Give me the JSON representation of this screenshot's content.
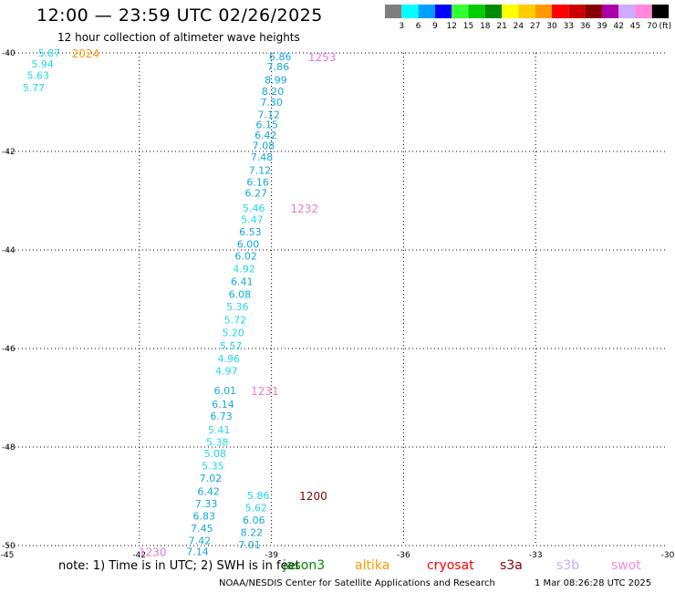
{
  "header": {
    "title": "12:00 — 23:59 UTC 02/26/2025",
    "subtitle": "12 hour collection of altimeter wave heights"
  },
  "color_scale": {
    "unit_label": "(ft)",
    "steps": [
      {
        "label": "3",
        "color": "#7f7f7f"
      },
      {
        "label": "6",
        "color": "#00ffff"
      },
      {
        "label": "9",
        "color": "#00a0ff"
      },
      {
        "label": "12",
        "color": "#0000ff"
      },
      {
        "label": "15",
        "color": "#33ff33"
      },
      {
        "label": "18",
        "color": "#00cc00"
      },
      {
        "label": "21",
        "color": "#008800"
      },
      {
        "label": "24",
        "color": "#ffff00"
      },
      {
        "label": "27",
        "color": "#ffcc00"
      },
      {
        "label": "30",
        "color": "#ff9900"
      },
      {
        "label": "33",
        "color": "#ff0000"
      },
      {
        "label": "36",
        "color": "#cc0000"
      },
      {
        "label": "39",
        "color": "#880000"
      },
      {
        "label": "42",
        "color": "#aa00aa"
      },
      {
        "label": "45",
        "color": "#ccaaff"
      },
      {
        "label": "70",
        "color": "#ff88dd"
      },
      {
        "label": "",
        "color": "#000000"
      }
    ]
  },
  "map": {
    "lon_range": [
      -45,
      -30
    ],
    "lat_range": [
      -50,
      -40
    ],
    "lon_ticks": [
      {
        "value": -45,
        "label": "-45"
      },
      {
        "value": -42,
        "label": "-42"
      },
      {
        "value": -39,
        "label": "-39"
      },
      {
        "value": -36,
        "label": "-36"
      },
      {
        "value": -33,
        "label": "-33"
      },
      {
        "value": -30,
        "label": "-30"
      }
    ],
    "lat_ticks": [
      {
        "value": -40,
        "label": "-40"
      },
      {
        "value": -42,
        "label": "-42"
      },
      {
        "value": -44,
        "label": "-44"
      },
      {
        "value": -46,
        "label": "-46"
      },
      {
        "value": -48,
        "label": "-48"
      },
      {
        "value": -50,
        "label": "-50"
      }
    ],
    "grid": "dotted",
    "colors": {
      "swh_low": "#20d8e8",
      "swh_mid": "#10a8dc"
    },
    "tracks": [
      {
        "name": "track-east",
        "points": [
          {
            "lon": -38.8,
            "lat": -40.07,
            "swh": "6.86"
          },
          {
            "lon": -38.85,
            "lat": -40.28,
            "swh": "7.86"
          },
          {
            "lon": -38.9,
            "lat": -40.55,
            "swh": "8.99"
          },
          {
            "lon": -38.97,
            "lat": -40.78,
            "swh": "8.20"
          },
          {
            "lon": -39.0,
            "lat": -41.0,
            "swh": "7.30"
          },
          {
            "lon": -39.06,
            "lat": -41.25,
            "swh": "7.12"
          },
          {
            "lon": -39.1,
            "lat": -41.45,
            "swh": "6.15"
          },
          {
            "lon": -39.13,
            "lat": -41.67,
            "swh": "6.42"
          },
          {
            "lon": -39.18,
            "lat": -41.88,
            "swh": "7.08"
          },
          {
            "lon": -39.22,
            "lat": -42.11,
            "swh": "7.48"
          },
          {
            "lon": -39.26,
            "lat": -42.38,
            "swh": "7.12"
          },
          {
            "lon": -39.31,
            "lat": -42.62,
            "swh": "6.16"
          },
          {
            "lon": -39.35,
            "lat": -42.84,
            "swh": "6.27"
          },
          {
            "lon": -39.4,
            "lat": -43.15,
            "swh": "5.46"
          },
          {
            "lon": -39.44,
            "lat": -43.38,
            "swh": "5.47"
          },
          {
            "lon": -39.48,
            "lat": -43.63,
            "swh": "6.53"
          },
          {
            "lon": -39.53,
            "lat": -43.88,
            "swh": "6.00"
          },
          {
            "lon": -39.58,
            "lat": -44.12,
            "swh": "6.02"
          },
          {
            "lon": -39.62,
            "lat": -44.38,
            "swh": "4.92"
          },
          {
            "lon": -39.67,
            "lat": -44.64,
            "swh": "6.41"
          },
          {
            "lon": -39.72,
            "lat": -44.9,
            "swh": "6.08"
          },
          {
            "lon": -39.77,
            "lat": -45.15,
            "swh": "5.36"
          },
          {
            "lon": -39.82,
            "lat": -45.42,
            "swh": "5.72"
          },
          {
            "lon": -39.87,
            "lat": -45.68,
            "swh": "5.20"
          },
          {
            "lon": -39.92,
            "lat": -45.94,
            "swh": "5.57"
          },
          {
            "lon": -39.97,
            "lat": -46.2,
            "swh": "4.96"
          },
          {
            "lon": -40.02,
            "lat": -46.45,
            "swh": "4.97"
          }
        ]
      },
      {
        "name": "track-south",
        "points": [
          {
            "lon": -40.05,
            "lat": -46.85,
            "swh": "6.01"
          },
          {
            "lon": -40.1,
            "lat": -47.13,
            "swh": "6.14"
          },
          {
            "lon": -40.14,
            "lat": -47.37,
            "swh": "6.73"
          },
          {
            "lon": -40.19,
            "lat": -47.65,
            "swh": "5.41"
          },
          {
            "lon": -40.23,
            "lat": -47.9,
            "swh": "5.38"
          },
          {
            "lon": -40.28,
            "lat": -48.13,
            "swh": "5.08"
          },
          {
            "lon": -40.33,
            "lat": -48.38,
            "swh": "5.35"
          },
          {
            "lon": -40.38,
            "lat": -48.63,
            "swh": "7.02"
          },
          {
            "lon": -40.43,
            "lat": -48.9,
            "swh": "6.42"
          },
          {
            "lon": -40.48,
            "lat": -49.15,
            "swh": "7.33"
          },
          {
            "lon": -40.53,
            "lat": -49.4,
            "swh": "6.83"
          },
          {
            "lon": -40.58,
            "lat": -49.65,
            "swh": "7.45"
          },
          {
            "lon": -40.63,
            "lat": -49.9,
            "swh": "7.42"
          },
          {
            "lon": -40.68,
            "lat": -50.12,
            "swh": "7.14"
          }
        ]
      },
      {
        "name": "track-short",
        "points": [
          {
            "lon": -39.3,
            "lat": -48.98,
            "swh": "5.86"
          },
          {
            "lon": -39.35,
            "lat": -49.23,
            "swh": "5.62"
          },
          {
            "lon": -39.4,
            "lat": -49.48,
            "swh": "6.06"
          },
          {
            "lon": -39.45,
            "lat": -49.73,
            "swh": "8.22"
          },
          {
            "lon": -39.5,
            "lat": -49.98,
            "swh": "7.01"
          }
        ]
      },
      {
        "name": "track-corner",
        "points": [
          {
            "lon": -44.05,
            "lat": -40.0,
            "swh": "5.87"
          },
          {
            "lon": -44.2,
            "lat": -40.22,
            "swh": "5.94"
          },
          {
            "lon": -44.3,
            "lat": -40.45,
            "swh": "5.63"
          },
          {
            "lon": -44.4,
            "lat": -40.7,
            "swh": "5.77"
          }
        ]
      }
    ],
    "time_labels": [
      {
        "lon": -37.85,
        "lat": -40.07,
        "text": "1253",
        "color": "#ee77cc"
      },
      {
        "lon": -38.25,
        "lat": -43.15,
        "text": "1232",
        "color": "#ee77cc"
      },
      {
        "lon": -39.15,
        "lat": -46.85,
        "text": "1231",
        "color": "#ee77cc"
      },
      {
        "lon": -38.05,
        "lat": -48.98,
        "text": "1200",
        "color": "#880000"
      },
      {
        "lon": -41.7,
        "lat": -50.12,
        "text": "1230",
        "color": "#ee77cc"
      },
      {
        "lon": -43.22,
        "lat": -40.0,
        "text": "2024",
        "color": "#ff9900"
      }
    ]
  },
  "footer": {
    "note": "note:  1) Time is in UTC; 2) SWH is in feet",
    "satellites": [
      {
        "label": "jason3",
        "color": "#008800"
      },
      {
        "label": "altika",
        "color": "#ff9900"
      },
      {
        "label": "cryosat",
        "color": "#ff0000"
      },
      {
        "label": "s3a",
        "color": "#880000"
      },
      {
        "label": "s3b",
        "color": "#ccaaff"
      },
      {
        "label": "swot",
        "color": "#ff88dd"
      }
    ],
    "credit": "NOAA/NESDIS Center for Satellite Applications and Research",
    "timestamp": "1 Mar 08:26:28 UTC 2025"
  }
}
